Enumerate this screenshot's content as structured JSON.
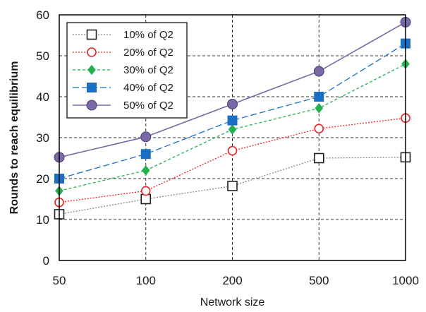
{
  "chart_data": {
    "type": "line",
    "title": "",
    "xlabel": "Network size",
    "ylabel": "Rounds to reach equilibrium",
    "categories": [
      "50",
      "100",
      "200",
      "500",
      "1000"
    ],
    "ylim": [
      0,
      60
    ],
    "yticks": [
      "0",
      "10",
      "20",
      "30",
      "40",
      "50",
      "60"
    ],
    "grid": "dashed",
    "legend_position": "top-left",
    "series": [
      {
        "name": "10% of Q2",
        "values": [
          11.3,
          15,
          18.2,
          25,
          25.2
        ],
        "color": "#888888",
        "marker": "open-square",
        "dash": "dotted"
      },
      {
        "name": "20% of Q2",
        "values": [
          14.2,
          17,
          26.8,
          32.2,
          34.8
        ],
        "color": "#ee2222",
        "marker": "open-circle",
        "dash": "dotted"
      },
      {
        "name": "30% of Q2",
        "values": [
          17,
          22,
          32,
          37.2,
          48
        ],
        "color": "#22b14c",
        "marker": "diamond",
        "dash": "dashed"
      },
      {
        "name": "40% of Q2",
        "values": [
          20,
          26,
          34.2,
          40,
          53
        ],
        "color": "#1a6fc4",
        "marker": "filled-square",
        "dash": "long-dash"
      },
      {
        "name": "50% of Q2",
        "values": [
          25.2,
          30.2,
          38.2,
          46.2,
          58.2
        ],
        "color": "#7b68a6",
        "marker": "filled-circle",
        "dash": "solid"
      }
    ]
  }
}
